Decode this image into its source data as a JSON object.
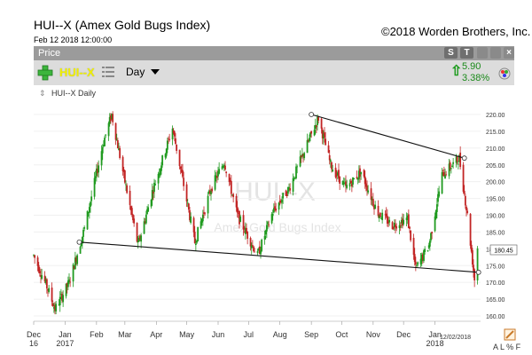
{
  "header": {
    "title": "HUI--X (Amex Gold Bugs Index)",
    "copyright": "©2018 Worden Brothers, Inc.",
    "timestamp": "Feb 12 2018 12:00:00"
  },
  "price_header": {
    "label": "Price",
    "buttons": [
      "S",
      "T"
    ]
  },
  "toolbar": {
    "symbol": "HUI--X",
    "period": "Day",
    "change_value": "5.90",
    "change_percent": "3.38%",
    "up_color": "#1a8a1a"
  },
  "chart_label": "HUI--X Daily",
  "watermark": {
    "symbol": "HUI--X",
    "name": "Amex Gold Bugs Index"
  },
  "current_price_label": "180.45",
  "date_marker": "12/02/2018",
  "footer_icons": "A L % F",
  "chart_data": {
    "type": "candlestick",
    "y_ticks": [
      "220.00",
      "215.00",
      "210.00",
      "205.00",
      "200.00",
      "195.00",
      "190.00",
      "185.00",
      "180.00",
      "175.00",
      "170.00",
      "165.00",
      "160.00"
    ],
    "ylim": [
      157.5,
      222.5
    ],
    "x_ticks": [
      {
        "label": "Dec",
        "sub": "16"
      },
      {
        "label": "Jan",
        "sub": "2017"
      },
      {
        "label": "Feb",
        "sub": ""
      },
      {
        "label": "Mar",
        "sub": ""
      },
      {
        "label": "Apr",
        "sub": ""
      },
      {
        "label": "May",
        "sub": ""
      },
      {
        "label": "Jun",
        "sub": ""
      },
      {
        "label": "Jul",
        "sub": ""
      },
      {
        "label": "Aug",
        "sub": ""
      },
      {
        "label": "Sep",
        "sub": ""
      },
      {
        "label": "Oct",
        "sub": ""
      },
      {
        "label": "Nov",
        "sub": ""
      },
      {
        "label": "Dec",
        "sub": ""
      },
      {
        "label": "Jan",
        "sub": "2018"
      }
    ],
    "anchors": [
      [
        "2016-12-01",
        178
      ],
      [
        "2016-12-15",
        168
      ],
      [
        "2016-12-22",
        162
      ],
      [
        "2017-01-05",
        170
      ],
      [
        "2017-01-20",
        186
      ],
      [
        "2017-02-08",
        212
      ],
      [
        "2017-02-16",
        220
      ],
      [
        "2017-03-01",
        200
      ],
      [
        "2017-03-14",
        181
      ],
      [
        "2017-03-28",
        197
      ],
      [
        "2017-04-17",
        216
      ],
      [
        "2017-05-09",
        182
      ],
      [
        "2017-05-25",
        198
      ],
      [
        "2017-06-07",
        206
      ],
      [
        "2017-06-20",
        190
      ],
      [
        "2017-07-10",
        178
      ],
      [
        "2017-07-25",
        191
      ],
      [
        "2017-08-10",
        198
      ],
      [
        "2017-08-25",
        209
      ],
      [
        "2017-09-08",
        219
      ],
      [
        "2017-09-20",
        205
      ],
      [
        "2017-10-05",
        198
      ],
      [
        "2017-10-20",
        203
      ],
      [
        "2017-11-05",
        191
      ],
      [
        "2017-11-20",
        187
      ],
      [
        "2017-12-05",
        189
      ],
      [
        "2017-12-13",
        174
      ],
      [
        "2017-12-26",
        181
      ],
      [
        "2018-01-08",
        202
      ],
      [
        "2018-01-25",
        207
      ],
      [
        "2018-02-02",
        190
      ],
      [
        "2018-02-09",
        171
      ],
      [
        "2018-02-12",
        180.45
      ]
    ],
    "trendlines": [
      {
        "start": [
          "2017-01-15",
          182
        ],
        "end": [
          "2018-02-13",
          173
        ]
      },
      {
        "start": [
          "2017-09-01",
          220
        ],
        "end": [
          "2018-01-30",
          207
        ]
      }
    ]
  }
}
